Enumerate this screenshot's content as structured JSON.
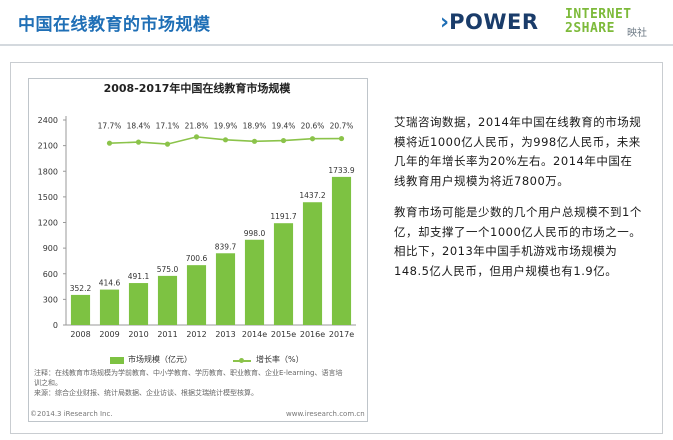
{
  "header": {
    "title": "中国在线教育的市场规模",
    "power_logo": {
      "chevron": "›",
      "text": "POWER"
    },
    "i2s_logo": {
      "line1": "INTERNET",
      "line2": "2SHARE",
      "suffix": "映社"
    }
  },
  "chart_data": {
    "type": "bar",
    "title": "2008-2017年中国在线教育市场规模",
    "categories": [
      "2008",
      "2009",
      "2010",
      "2011",
      "2012",
      "2013",
      "2014e",
      "2015e",
      "2016e",
      "2017e"
    ],
    "series": [
      {
        "name": "市场规模（亿元）",
        "type": "bar",
        "values": [
          352.2,
          414.6,
          491.1,
          575.0,
          700.6,
          839.7,
          998.0,
          1191.7,
          1437.2,
          1733.9
        ]
      },
      {
        "name": "增长率（%）",
        "type": "line",
        "values": [
          null,
          17.7,
          18.4,
          17.1,
          21.8,
          19.9,
          18.9,
          19.4,
          20.6,
          20.7
        ]
      }
    ],
    "bar_labels": [
      "352.2",
      "414.6",
      "491.1",
      "575.0",
      "700.6",
      "839.7",
      "998.0",
      "1191.7",
      "1437.2",
      "1733.9"
    ],
    "growth_labels": [
      "17.7%",
      "18.4%",
      "17.1%",
      "21.8%",
      "19.9%",
      "18.9%",
      "19.4%",
      "20.6%",
      "20.7%"
    ],
    "yticks": [
      "0",
      "300",
      "600",
      "900",
      "1200",
      "1500",
      "1800",
      "2100",
      "2400"
    ],
    "ylim": [
      0,
      2400
    ],
    "xlabel": "",
    "ylabel": "",
    "grid": false,
    "legend_position": "bottom",
    "colors": {
      "bar": "#7dc242",
      "line": "#8bc34a"
    }
  },
  "notes": {
    "line1": "注释：在线教育市场规模为学前教育、中小学教育、学历教育、职业教育、企业E-learning、语言培",
    "line2": "训之和。",
    "line3": "来源：综合企业财报、统计局数据、企业访谈、根据艾瑞统计模型核算。",
    "copyright": "©2014.3 iResearch Inc.",
    "website": "www.iresearch.com.cn"
  },
  "description": {
    "para1": "艾瑞咨询数据，2014年中国在线教育的市场规模将近1000亿人民币，为998亿人民币，未来几年的年增长率为20%左右。2014年中国在线教育用户规模为将近7800万。",
    "para2": "教育市场可能是少数的几个用户总规模不到1个亿，却支撑了一个1000亿人民币的市场之一。相比下，2013年中国手机游戏市场规模为148.5亿人民币，但用户规模也有1.9亿。"
  }
}
